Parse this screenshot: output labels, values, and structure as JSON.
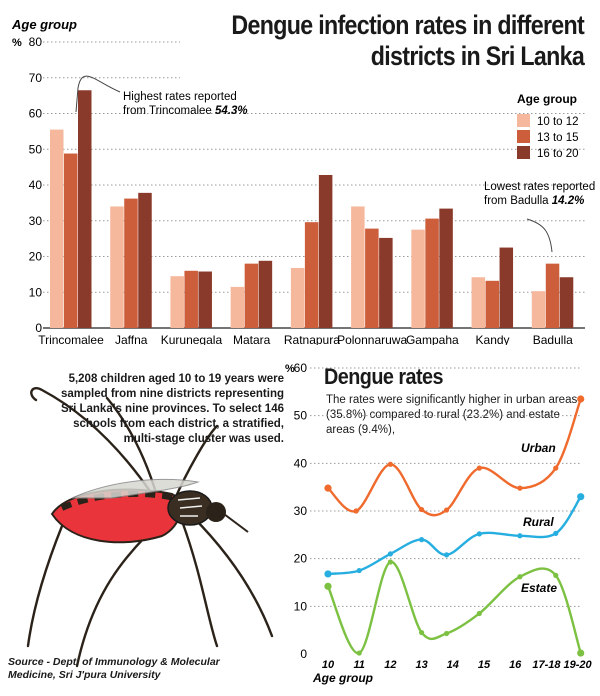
{
  "title": {
    "line1": "Dengue infection rates in different",
    "line2": "districts in Sri Lanka"
  },
  "colors": {
    "c10": "#f6b89c",
    "c13": "#cc5e3c",
    "c16": "#8a3a2a",
    "urban": "#ef6a2c",
    "rural": "#27aee0",
    "estate": "#7cc142",
    "guide": "#8c8c8c"
  },
  "chart_data": [
    {
      "type": "bar",
      "ylabel": "Age group",
      "ylabel_unit": "%",
      "ylim": [
        0,
        80
      ],
      "yticks": [
        "0",
        "10",
        "20",
        "30",
        "40",
        "50",
        "60",
        "70",
        "80"
      ],
      "categories": [
        "Trincomalee",
        "Jaffna",
        "Kurunegala",
        "Matara",
        "Ratnapura",
        "Polonnaruwa",
        "Gampaha",
        "Kandy",
        "Badulla"
      ],
      "legend_title": "Age group",
      "legend_position": "right",
      "series": [
        {
          "name": "10 to 12",
          "color": "#f6b89c",
          "values": [
            55.5,
            34,
            14.5,
            11.5,
            16.8,
            34,
            27.5,
            14.2,
            10.3
          ]
        },
        {
          "name": "13 to 15",
          "color": "#cc5e3c",
          "values": [
            48.8,
            36.2,
            16,
            18,
            29.6,
            27.8,
            30.6,
            13.2,
            18
          ]
        },
        {
          "name": "16 to 20",
          "color": "#8a3a2a",
          "values": [
            66.5,
            37.8,
            15.8,
            18.8,
            42.8,
            25.2,
            33.4,
            22.5,
            14.2
          ]
        }
      ],
      "annotations": [
        {
          "text": "Highest rates reported from Trincomalee",
          "value": "54.3%"
        },
        {
          "text": "Lowest rates reported from Badulla",
          "value": "14.2%"
        }
      ]
    },
    {
      "type": "line",
      "title": "Dengue rates",
      "xlabel": "Age group",
      "ylabel_unit": "%",
      "ylim": [
        0,
        60
      ],
      "yticks": [
        "0",
        "10",
        "20",
        "30",
        "40",
        "50",
        "60"
      ],
      "categories": [
        "10",
        "11",
        "12",
        "13",
        "14",
        "15",
        "16",
        "17-18",
        "19-20"
      ],
      "series": [
        {
          "name": "Urban",
          "color": "#ef6a2c",
          "x": [
            0,
            0.9,
            2,
            3,
            3.8,
            4.85,
            6.15,
            7.3,
            8.1
          ],
          "values": [
            34.8,
            30,
            39.8,
            30.3,
            30.2,
            39,
            34.8,
            39,
            53.5
          ]
        },
        {
          "name": "Rural",
          "color": "#27aee0",
          "x": [
            0,
            1,
            2,
            3,
            3.8,
            4.85,
            6.15,
            7.3,
            8.1
          ],
          "values": [
            16.8,
            17.5,
            21,
            24,
            20.8,
            25.2,
            24.8,
            25.3,
            33
          ]
        },
        {
          "name": "Estate",
          "color": "#7cc142",
          "x": [
            0,
            1,
            2,
            3,
            3.8,
            4.85,
            6.15,
            7.3,
            8.1
          ],
          "values": [
            14.2,
            0.2,
            19.3,
            4.5,
            4.3,
            8.5,
            16.2,
            16.5,
            0.2
          ]
        }
      ]
    }
  ],
  "top_annotations": {
    "high_text_1": "Highest rates reported",
    "high_text_2": "from Trincomalee ",
    "high_value": "54.3%",
    "low_text_1": "Lowest rates reported",
    "low_text_2": "from Badulla ",
    "low_value": "14.2%"
  },
  "study_note": "5,208 children aged 10 to 19 years were sampled from nine districts representing Sri Lanka's nine provinces. To select 146 schools from each district, a stratified, multi-stage cluster was used.",
  "dengue_rates": {
    "title": "Dengue rates",
    "note": "The rates were significantly higher in urban areas (35.8%) compared to rural (23.2%) and estate areas (9.4%),"
  },
  "source": {
    "line1": "Source - Dept. of Immunology & Molecular",
    "line2": "Medicine, Sri J'pura University"
  }
}
